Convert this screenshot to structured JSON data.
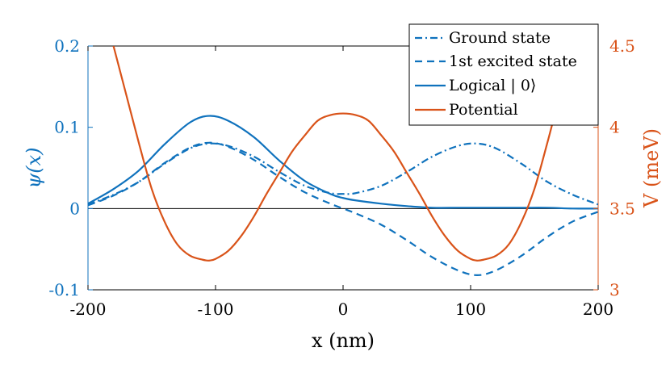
{
  "chart_data": {
    "type": "line",
    "xlabel": "x (nm)",
    "ylabel_left": "ψ(x)",
    "ylabel_right": "V (meV)",
    "xlim": [
      -200,
      200
    ],
    "ylim_left": [
      -0.1,
      0.2
    ],
    "ylim_right": [
      3,
      4.5
    ],
    "x_ticks": [
      -200,
      -100,
      0,
      100,
      200
    ],
    "x_tick_labels": [
      "-200",
      "-100",
      "0",
      "100",
      "200"
    ],
    "y_left_ticks": [
      -0.1,
      0,
      0.1,
      0.2
    ],
    "y_left_tick_labels": [
      "-0.1",
      "0",
      "0.1",
      "0.2"
    ],
    "y_right_ticks": [
      3,
      3.5,
      4,
      4.5
    ],
    "y_right_tick_labels": [
      "3",
      "3.5",
      "4",
      "4.5"
    ],
    "grid": false,
    "legend_position": "top-right",
    "colors": {
      "wavefunction": "#0f72bd",
      "potential": "#d95319",
      "zero_line": "#000000",
      "axes": "#000000"
    },
    "series": [
      {
        "name": "Ground state",
        "axis": "left",
        "style": "dashdot",
        "x": [
          -200,
          -180,
          -160,
          -140,
          -120,
          -105,
          -90,
          -70,
          -50,
          -30,
          -10,
          0,
          10,
          30,
          50,
          70,
          90,
          105,
          120,
          140,
          160,
          180,
          200
        ],
        "values": [
          0.005,
          0.017,
          0.033,
          0.055,
          0.074,
          0.08,
          0.077,
          0.064,
          0.045,
          0.028,
          0.019,
          0.018,
          0.019,
          0.028,
          0.045,
          0.064,
          0.077,
          0.08,
          0.074,
          0.055,
          0.033,
          0.017,
          0.005
        ]
      },
      {
        "name": "1st excited state",
        "axis": "left",
        "style": "dashed",
        "x": [
          -200,
          -180,
          -160,
          -140,
          -120,
          -105,
          -90,
          -70,
          -50,
          -30,
          -10,
          0,
          10,
          30,
          50,
          70,
          90,
          105,
          120,
          140,
          160,
          180,
          200
        ],
        "values": [
          0.004,
          0.016,
          0.033,
          0.056,
          0.075,
          0.081,
          0.076,
          0.06,
          0.039,
          0.02,
          0.006,
          0,
          -0.006,
          -0.02,
          -0.039,
          -0.06,
          -0.076,
          -0.082,
          -0.076,
          -0.058,
          -0.035,
          -0.016,
          -0.004
        ]
      },
      {
        "name": "Logical | 0⟩",
        "axis": "left",
        "style": "solid",
        "x": [
          -200,
          -180,
          -160,
          -140,
          -120,
          -105,
          -90,
          -70,
          -50,
          -30,
          -10,
          0,
          10,
          30,
          50,
          70,
          90,
          105,
          120,
          140,
          160,
          180,
          200
        ],
        "values": [
          0.006,
          0.024,
          0.047,
          0.079,
          0.106,
          0.114,
          0.108,
          0.088,
          0.059,
          0.034,
          0.018,
          0.013,
          0.01,
          0.006,
          0.003,
          0.001,
          0.001,
          0.001,
          0.001,
          0.001,
          0.001,
          0,
          0
        ]
      },
      {
        "name": "Potential",
        "axis": "right",
        "style": "solid",
        "x": [
          -180,
          -170,
          -160,
          -150,
          -140,
          -130,
          -120,
          -110,
          -105,
          -100,
          -90,
          -80,
          -70,
          -60,
          -50,
          -40,
          -30,
          -20,
          -10,
          0,
          10,
          20,
          30,
          40,
          50,
          60,
          70,
          80,
          90,
          100,
          105,
          110,
          120,
          130,
          140,
          150,
          160,
          165
        ],
        "values": [
          4.5,
          4.2,
          3.9,
          3.62,
          3.42,
          3.28,
          3.21,
          3.185,
          3.18,
          3.19,
          3.24,
          3.33,
          3.45,
          3.59,
          3.72,
          3.85,
          3.95,
          4.04,
          4.075,
          4.085,
          4.075,
          4.04,
          3.95,
          3.85,
          3.72,
          3.59,
          3.45,
          3.33,
          3.24,
          3.19,
          3.18,
          3.185,
          3.21,
          3.28,
          3.42,
          3.62,
          3.9,
          4.05
        ]
      }
    ]
  }
}
